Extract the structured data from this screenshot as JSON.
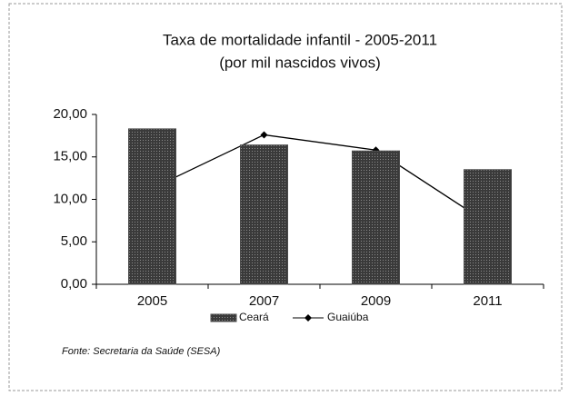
{
  "chart_data": {
    "type": "bar-line",
    "title": "Taxa de mortalidade infantil - 2005-2011",
    "subtitle": "(por mil nascidos vivos)",
    "categories": [
      "2005",
      "2007",
      "2009",
      "2011"
    ],
    "series": [
      {
        "name": "Ceará",
        "type": "bar",
        "color": "#4a4a4a",
        "values": [
          18.3,
          16.4,
          15.7,
          13.5
        ]
      },
      {
        "name": "Guaiúba",
        "type": "line",
        "color": "#000000",
        "values": [
          11.3,
          17.6,
          15.8,
          7.2
        ]
      }
    ],
    "ylim": [
      0,
      20
    ],
    "yticks": [
      {
        "value": 0,
        "label": "0,00"
      },
      {
        "value": 5,
        "label": "5,00"
      },
      {
        "value": 10,
        "label": "10,00"
      },
      {
        "value": 15,
        "label": "15,00"
      },
      {
        "value": 20,
        "label": "20,00"
      }
    ],
    "legend": "bottom",
    "source": "Fonte: Secretaria da Saúde (SESA)"
  }
}
